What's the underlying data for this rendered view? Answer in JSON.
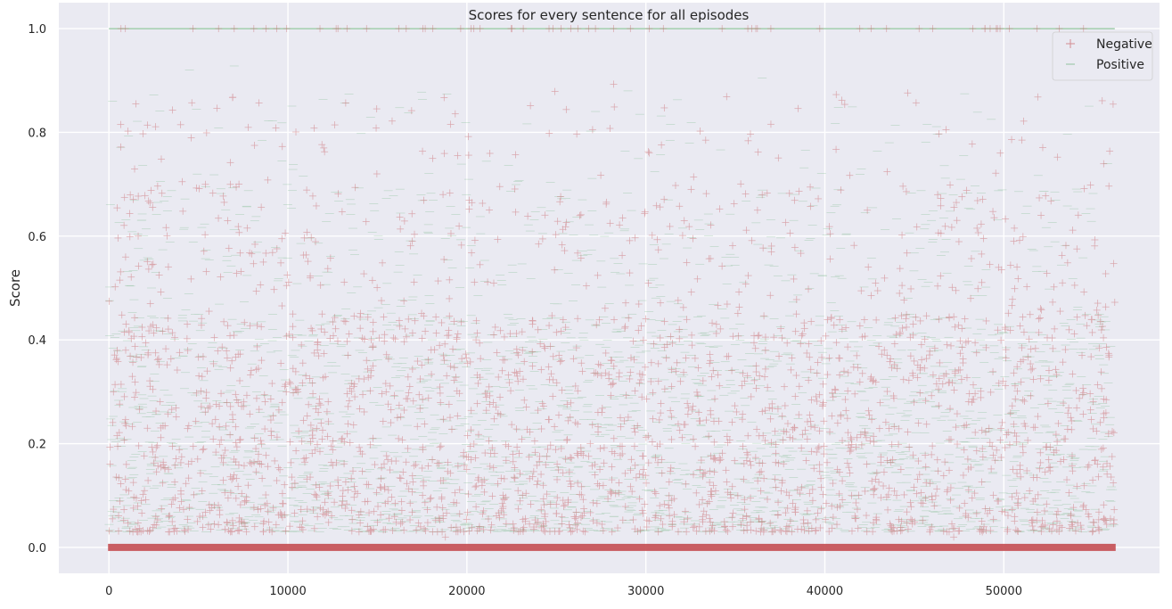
{
  "chart_data": {
    "type": "scatter",
    "title": "Scores for every sentence for all episodes",
    "xlabel": "",
    "ylabel": "Score",
    "xlim": [
      -2800,
      58700
    ],
    "ylim": [
      -0.05,
      1.05
    ],
    "x_ticks": [
      0,
      10000,
      20000,
      30000,
      40000,
      50000
    ],
    "x_tick_labels": [
      "0",
      "10000",
      "20000",
      "30000",
      "40000",
      "50000"
    ],
    "y_ticks": [
      0.0,
      0.2,
      0.4,
      0.6,
      0.8,
      1.0
    ],
    "y_tick_labels": [
      "0.0",
      "0.2",
      "0.4",
      "0.6",
      "0.8",
      "1.0"
    ],
    "grid": true,
    "legend_position": "top-right",
    "background_color": "#eaeaf2",
    "x_range": [
      0,
      56200
    ],
    "series": [
      {
        "name": "Negative",
        "marker": "+",
        "color": "#c44e52",
        "description": "dense scatter of sentence scores; large band at 0.0, cloud mostly 0.05-0.45 thinning toward 0.85, sparse points at 1.0",
        "baseline_value": 0.0,
        "sample_points": [
          [
            28200,
            0.893
          ],
          [
            55500,
            0.861
          ],
          [
            45100,
            0.857
          ],
          [
            1500,
            0.855
          ],
          [
            20100,
            0.756
          ],
          [
            36500,
            0.68
          ],
          [
            49800,
            0.76
          ],
          [
            12000,
            0.77
          ],
          [
            18800,
            0.02
          ],
          [
            47200,
            0.02
          ]
        ],
        "count_at_one": 60
      },
      {
        "name": "Positive",
        "marker": "_",
        "color": "#55a868",
        "description": "dense scatter of short horizontal dash markers; line along 1.0, cloud mostly 0.05-0.5 thinning toward 0.9",
        "baseline_value": 1.0,
        "sample_points": [
          [
            7000,
            0.928
          ],
          [
            4500,
            0.92
          ],
          [
            36500,
            0.905
          ],
          [
            29000,
            0.88
          ],
          [
            55800,
            0.74
          ],
          [
            200,
            0.86
          ]
        ]
      }
    ]
  }
}
